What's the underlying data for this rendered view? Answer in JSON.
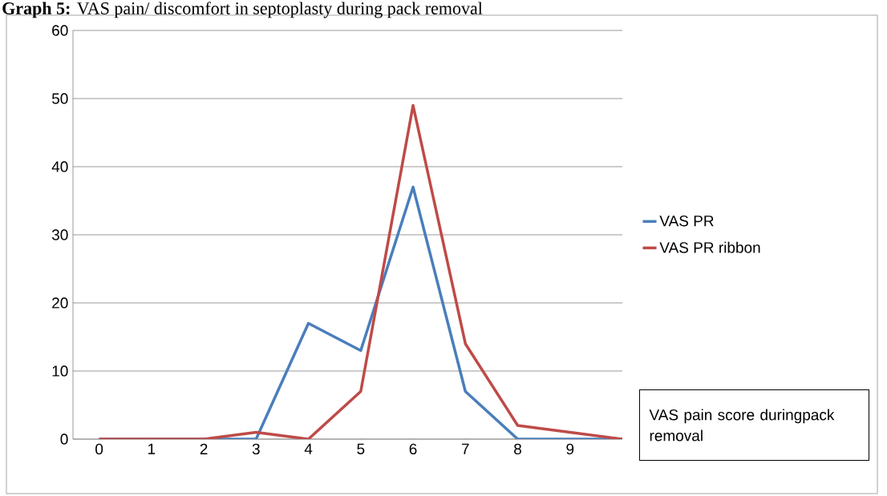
{
  "chart_data": {
    "type": "line",
    "title": "**Graph 5:** VAS pain/ discomfort in septoplasty during pack removal",
    "categories": [
      "0",
      "1",
      "2",
      "3",
      "4",
      "5",
      "6",
      "7",
      "8",
      "9",
      null
    ],
    "series": [
      {
        "name": "VAS PR",
        "color": "#4a7ebb",
        "values": [
          0,
          0,
          0,
          0,
          17,
          13,
          37,
          7,
          0,
          0,
          0
        ]
      },
      {
        "name": "VAS PR ribbon",
        "color": "#be4b48",
        "values": [
          0,
          0,
          0,
          1,
          0,
          7,
          49,
          14,
          2,
          1,
          0
        ]
      }
    ],
    "ylim": [
      0,
      60
    ],
    "yticks": [
      0,
      10,
      20,
      30,
      40,
      50,
      60
    ],
    "grid": "y",
    "legend": "right",
    "marker": "none",
    "line_style": "solid",
    "annotations": [
      "VAS pain score duringpack removal"
    ]
  }
}
